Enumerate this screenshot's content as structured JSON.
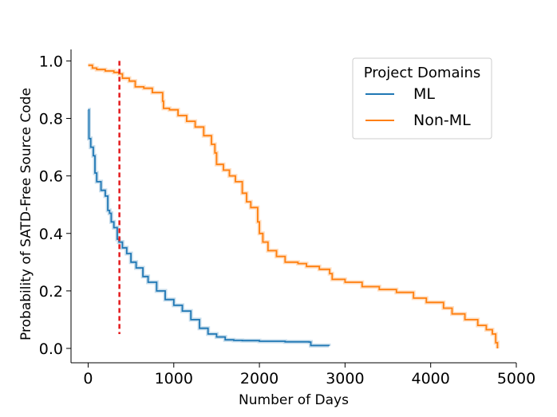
{
  "chart_data": {
    "type": "line",
    "xlabel": "Number of Days",
    "ylabel": "Probability of SATD-Free Source Code",
    "xlim": [
      -200,
      5000
    ],
    "ylim": [
      -0.05,
      1.04
    ],
    "x_ticks": [
      0,
      1000,
      2000,
      3000,
      4000,
      5000
    ],
    "x_tick_labels": [
      "0",
      "1000",
      "2000",
      "3000",
      "4000",
      "5000"
    ],
    "y_ticks": [
      0.0,
      0.2,
      0.4,
      0.6,
      0.8,
      1.0
    ],
    "y_tick_labels": [
      "0.0",
      "0.2",
      "0.4",
      "0.6",
      "0.8",
      "1.0"
    ],
    "grid": false,
    "legend": {
      "title": "Project Domains",
      "placement": "top-right"
    },
    "series": [
      {
        "name": "ML",
        "color": "#1f77b4",
        "points": [
          [
            0,
            0.83
          ],
          [
            10,
            0.73
          ],
          [
            30,
            0.7
          ],
          [
            60,
            0.67
          ],
          [
            80,
            0.61
          ],
          [
            100,
            0.58
          ],
          [
            150,
            0.55
          ],
          [
            200,
            0.53
          ],
          [
            230,
            0.48
          ],
          [
            250,
            0.47
          ],
          [
            270,
            0.44
          ],
          [
            300,
            0.42
          ],
          [
            340,
            0.38
          ],
          [
            360,
            0.37
          ],
          [
            400,
            0.35
          ],
          [
            450,
            0.33
          ],
          [
            500,
            0.3
          ],
          [
            560,
            0.28
          ],
          [
            640,
            0.25
          ],
          [
            700,
            0.23
          ],
          [
            800,
            0.2
          ],
          [
            900,
            0.17
          ],
          [
            1000,
            0.15
          ],
          [
            1100,
            0.13
          ],
          [
            1200,
            0.1
          ],
          [
            1300,
            0.07
          ],
          [
            1400,
            0.05
          ],
          [
            1500,
            0.04
          ],
          [
            1600,
            0.03
          ],
          [
            1700,
            0.028
          ],
          [
            1800,
            0.027
          ],
          [
            2000,
            0.025
          ],
          [
            2300,
            0.023
          ],
          [
            2580,
            0.022
          ],
          [
            2600,
            0.01
          ],
          [
            2810,
            0.008
          ]
        ]
      },
      {
        "name": "Non-ML",
        "color": "#ff7f0e",
        "points": [
          [
            0,
            0.985
          ],
          [
            50,
            0.975
          ],
          [
            100,
            0.97
          ],
          [
            200,
            0.965
          ],
          [
            300,
            0.96
          ],
          [
            360,
            0.955
          ],
          [
            400,
            0.94
          ],
          [
            480,
            0.93
          ],
          [
            550,
            0.91
          ],
          [
            650,
            0.905
          ],
          [
            750,
            0.89
          ],
          [
            870,
            0.86
          ],
          [
            880,
            0.835
          ],
          [
            950,
            0.83
          ],
          [
            1050,
            0.81
          ],
          [
            1150,
            0.79
          ],
          [
            1250,
            0.77
          ],
          [
            1350,
            0.74
          ],
          [
            1440,
            0.71
          ],
          [
            1480,
            0.68
          ],
          [
            1500,
            0.64
          ],
          [
            1580,
            0.62
          ],
          [
            1650,
            0.6
          ],
          [
            1720,
            0.58
          ],
          [
            1800,
            0.54
          ],
          [
            1850,
            0.51
          ],
          [
            1900,
            0.49
          ],
          [
            1980,
            0.44
          ],
          [
            2000,
            0.4
          ],
          [
            2040,
            0.37
          ],
          [
            2100,
            0.34
          ],
          [
            2200,
            0.32
          ],
          [
            2300,
            0.3
          ],
          [
            2450,
            0.295
          ],
          [
            2550,
            0.285
          ],
          [
            2700,
            0.275
          ],
          [
            2820,
            0.26
          ],
          [
            2850,
            0.24
          ],
          [
            3000,
            0.23
          ],
          [
            3200,
            0.215
          ],
          [
            3400,
            0.205
          ],
          [
            3600,
            0.195
          ],
          [
            3800,
            0.175
          ],
          [
            3950,
            0.16
          ],
          [
            4150,
            0.14
          ],
          [
            4250,
            0.12
          ],
          [
            4400,
            0.1
          ],
          [
            4550,
            0.08
          ],
          [
            4650,
            0.065
          ],
          [
            4720,
            0.05
          ],
          [
            4760,
            0.02
          ],
          [
            4780,
            0.0
          ]
        ]
      }
    ],
    "reference_line": {
      "x": 365,
      "y_range": [
        0.05,
        1.0
      ],
      "color": "#e41a1c",
      "style": "dashed"
    }
  }
}
